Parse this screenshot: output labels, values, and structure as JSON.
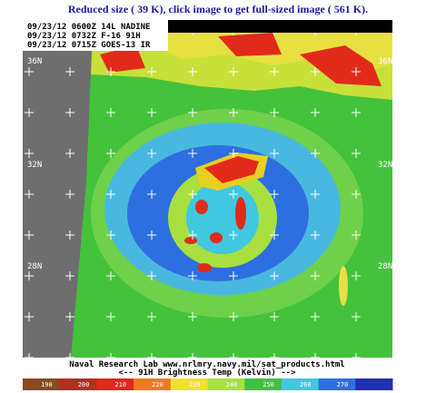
{
  "caption": "Reduced size ( 39 K), click image to get full-sized image ( 561 K).",
  "image": {
    "overlay_lines": [
      "09/23/12 0600Z 14L NADINE",
      "09/23/12 0732Z F-16 91H",
      "09/23/12 0715Z GOES-13 IR"
    ],
    "lat_labels_left": [
      "36N",
      "32N",
      "28N"
    ],
    "lat_labels_right": [
      "36N",
      "32N",
      "28N"
    ],
    "credit": "Naval Research Lab  www.nrlmry.navy.mil/sat_products.html",
    "scale_title": "<--    91H Brightness Temp (Kelvin)    -->",
    "scale_labels": [
      190,
      200,
      210,
      220,
      230,
      240,
      250,
      260,
      270
    ]
  }
}
